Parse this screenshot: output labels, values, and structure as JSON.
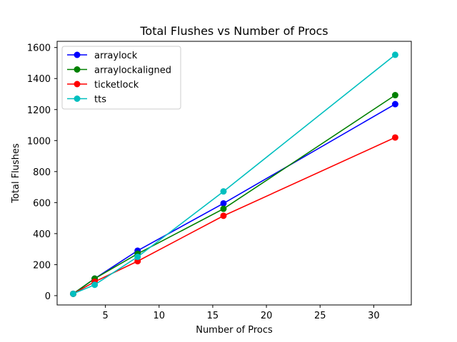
{
  "chart_data": {
    "type": "line",
    "title": "Total Flushes vs Number of Procs",
    "xlabel": "Number of Procs",
    "ylabel": "Total Flushes",
    "xlim": [
      0.5,
      33.5
    ],
    "ylim": [
      -60,
      1640
    ],
    "xticks": [
      5,
      10,
      15,
      20,
      25,
      30
    ],
    "yticks": [
      0,
      200,
      400,
      600,
      800,
      1000,
      1200,
      1400,
      1600
    ],
    "grid": false,
    "legend_position": "top-left",
    "x": [
      2,
      4,
      8,
      16,
      32
    ],
    "series": [
      {
        "name": "arraylock",
        "color": "#0000ff",
        "values": [
          12,
          110,
          290,
          595,
          1235
        ]
      },
      {
        "name": "arraylockaligned",
        "color": "#008000",
        "values": [
          12,
          110,
          270,
          560,
          1293
        ]
      },
      {
        "name": "ticketlock",
        "color": "#ff0000",
        "values": [
          12,
          90,
          222,
          515,
          1020
        ]
      },
      {
        "name": "tts",
        "color": "#00bfbf",
        "values": [
          12,
          70,
          250,
          672,
          1553
        ]
      }
    ]
  }
}
